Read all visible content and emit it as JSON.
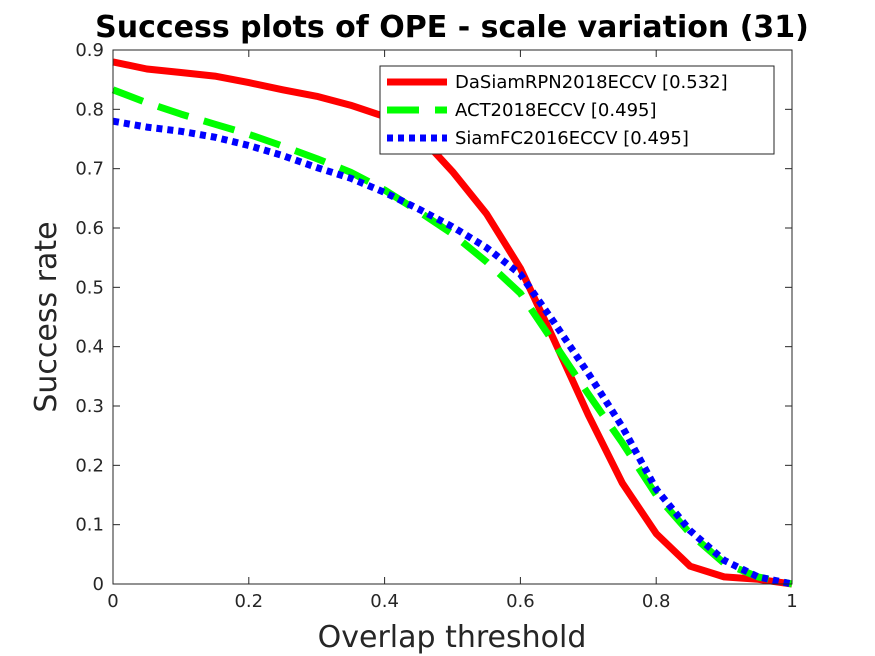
{
  "chart_data": {
    "type": "line",
    "title": "Success plots of OPE - scale variation (31)",
    "xlabel": "Overlap threshold",
    "ylabel": "Success rate",
    "xlim": [
      0,
      1
    ],
    "ylim": [
      0,
      0.9
    ],
    "xticks": [
      0,
      0.2,
      0.4,
      0.6,
      0.8,
      1
    ],
    "xtick_labels": [
      "0",
      "0.2",
      "0.4",
      "0.6",
      "0.8",
      "1"
    ],
    "yticks": [
      0,
      0.1,
      0.2,
      0.3,
      0.4,
      0.5,
      0.6,
      0.7,
      0.8,
      0.9
    ],
    "ytick_labels": [
      "0",
      "0.1",
      "0.2",
      "0.3",
      "0.4",
      "0.5",
      "0.6",
      "0.7",
      "0.8",
      "0.9"
    ],
    "grid": false,
    "legend_position": "top-right",
    "x": [
      0,
      0.05,
      0.1,
      0.15,
      0.2,
      0.25,
      0.3,
      0.35,
      0.4,
      0.45,
      0.5,
      0.55,
      0.6,
      0.65,
      0.7,
      0.75,
      0.8,
      0.85,
      0.9,
      0.95,
      1.0
    ],
    "series": [
      {
        "name": "DaSiamRPN2018ECCV [0.532]",
        "color": "#ff0000",
        "style": "solid",
        "values": [
          0.88,
          0.868,
          0.862,
          0.856,
          0.845,
          0.833,
          0.822,
          0.807,
          0.788,
          0.757,
          0.695,
          0.624,
          0.532,
          0.41,
          0.285,
          0.17,
          0.085,
          0.03,
          0.012,
          0.008,
          0.0
        ]
      },
      {
        "name": "ACT2018ECCV [0.495]",
        "color": "#00ff00",
        "style": "dashed",
        "values": [
          0.833,
          0.811,
          0.792,
          0.775,
          0.758,
          0.738,
          0.717,
          0.694,
          0.664,
          0.628,
          0.59,
          0.543,
          0.49,
          0.405,
          0.32,
          0.238,
          0.15,
          0.085,
          0.035,
          0.012,
          0.0
        ]
      },
      {
        "name": "SiamFC2016ECCV [0.495]",
        "color": "#0000ff",
        "style": "dotted",
        "values": [
          0.78,
          0.77,
          0.763,
          0.753,
          0.739,
          0.722,
          0.702,
          0.684,
          0.66,
          0.632,
          0.602,
          0.567,
          0.522,
          0.44,
          0.355,
          0.265,
          0.16,
          0.09,
          0.04,
          0.012,
          0.0
        ]
      }
    ]
  }
}
